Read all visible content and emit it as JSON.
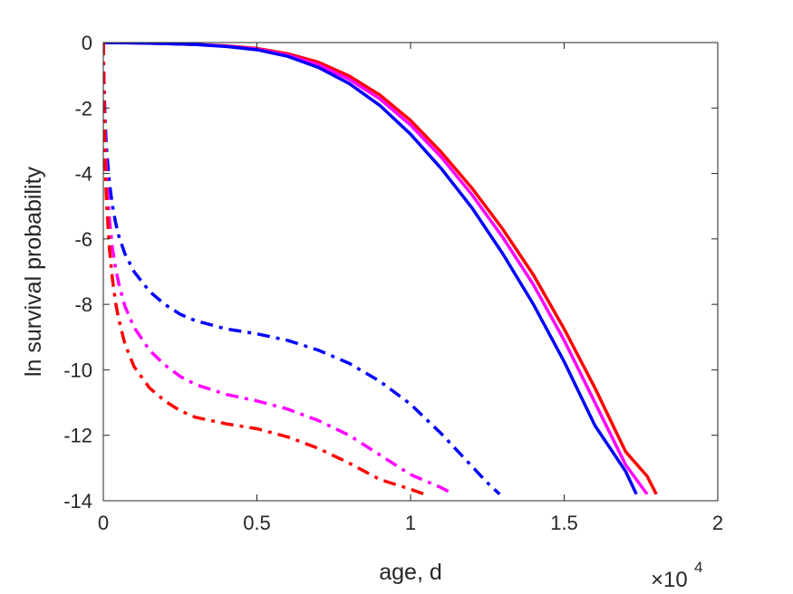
{
  "chart_data": {
    "type": "line",
    "xlabel": "age, d",
    "ylabel": "ln survival probability",
    "x_multiplier_base": "×10",
    "x_multiplier_exp": "4",
    "xlim": [
      0,
      20000
    ],
    "ylim": [
      -14,
      0
    ],
    "xticks": [
      0,
      5000,
      10000,
      15000,
      20000
    ],
    "xtick_labels": [
      "0",
      "0.5",
      "1",
      "1.5",
      "2"
    ],
    "yticks": [
      0,
      -2,
      -4,
      -6,
      -8,
      -10,
      -12,
      -14
    ],
    "ytick_labels": [
      "0",
      "-2",
      "-4",
      "-6",
      "-8",
      "-10",
      "-12",
      "-14"
    ],
    "grid": false,
    "series": [
      {
        "color": "#ff0000",
        "style": "solid",
        "x": [
          0,
          1000,
          2000,
          3000,
          4000,
          5000,
          6000,
          7000,
          8000,
          9000,
          10000,
          11000,
          12000,
          13000,
          14000,
          15000,
          16000,
          17000,
          17700,
          18000
        ],
        "y": [
          0,
          -0.01,
          -0.03,
          -0.06,
          -0.1,
          -0.18,
          -0.34,
          -0.6,
          -1.02,
          -1.6,
          -2.38,
          -3.35,
          -4.45,
          -5.7,
          -7.1,
          -8.75,
          -10.55,
          -12.5,
          -13.25,
          -13.8
        ]
      },
      {
        "color": "#ff00ff",
        "style": "solid",
        "x": [
          0,
          1000,
          2000,
          3000,
          4000,
          5000,
          6000,
          7000,
          8000,
          9000,
          10000,
          11000,
          12000,
          13000,
          14000,
          15000,
          16000,
          17000,
          17700
        ],
        "y": [
          0,
          -0.01,
          -0.03,
          -0.06,
          -0.11,
          -0.2,
          -0.38,
          -0.68,
          -1.12,
          -1.72,
          -2.52,
          -3.5,
          -4.65,
          -5.95,
          -7.4,
          -9.1,
          -11.0,
          -12.9,
          -13.8
        ]
      },
      {
        "color": "#0000ff",
        "style": "solid",
        "x": [
          0,
          1000,
          2000,
          3000,
          4000,
          5000,
          6000,
          7000,
          8000,
          9000,
          10000,
          11000,
          12000,
          13000,
          14000,
          15000,
          16000,
          17000,
          17350
        ],
        "y": [
          0,
          -0.01,
          -0.03,
          -0.06,
          -0.12,
          -0.22,
          -0.42,
          -0.76,
          -1.25,
          -1.92,
          -2.8,
          -3.85,
          -5.05,
          -6.45,
          -8.0,
          -9.75,
          -11.7,
          -13.1,
          -13.8
        ]
      },
      {
        "color": "#0000ff",
        "style": "dashdot",
        "x": [
          0,
          10,
          30,
          60,
          100,
          200,
          300,
          400,
          500,
          700,
          1000,
          1500,
          2000,
          2500,
          3000,
          4000,
          5000,
          6000,
          7000,
          8000,
          9000,
          10000,
          11000,
          12000,
          12500,
          12900
        ],
        "y": [
          0,
          -0.6,
          -1.5,
          -2.4,
          -3.2,
          -4.3,
          -5.0,
          -5.5,
          -5.9,
          -6.45,
          -7.0,
          -7.6,
          -8.0,
          -8.3,
          -8.5,
          -8.75,
          -8.9,
          -9.1,
          -9.4,
          -9.8,
          -10.35,
          -11.05,
          -11.95,
          -12.95,
          -13.45,
          -13.8
        ]
      },
      {
        "color": "#ff00ff",
        "style": "dashdot",
        "x": [
          0,
          10,
          30,
          60,
          100,
          200,
          300,
          400,
          500,
          700,
          1000,
          1500,
          2000,
          2500,
          3000,
          4000,
          5000,
          6000,
          7000,
          8000,
          9000,
          10000,
          11000,
          11400
        ],
        "y": [
          0,
          -0.7,
          -1.8,
          -3.0,
          -4.0,
          -5.4,
          -6.3,
          -6.9,
          -7.35,
          -8.05,
          -8.7,
          -9.4,
          -9.85,
          -10.2,
          -10.45,
          -10.75,
          -10.95,
          -11.2,
          -11.55,
          -12.0,
          -12.6,
          -13.2,
          -13.6,
          -13.8
        ]
      },
      {
        "color": "#ff0000",
        "style": "dashdot",
        "x": [
          0,
          10,
          30,
          60,
          100,
          200,
          300,
          400,
          500,
          700,
          1000,
          1500,
          2000,
          2500,
          3000,
          4000,
          5000,
          6000,
          7000,
          8000,
          9000,
          10000,
          10450
        ],
        "y": [
          0,
          -0.8,
          -2.2,
          -3.6,
          -4.8,
          -6.3,
          -7.25,
          -7.95,
          -8.45,
          -9.2,
          -9.9,
          -10.55,
          -10.95,
          -11.25,
          -11.45,
          -11.65,
          -11.8,
          -12.05,
          -12.4,
          -12.85,
          -13.35,
          -13.65,
          -13.8
        ]
      }
    ]
  }
}
